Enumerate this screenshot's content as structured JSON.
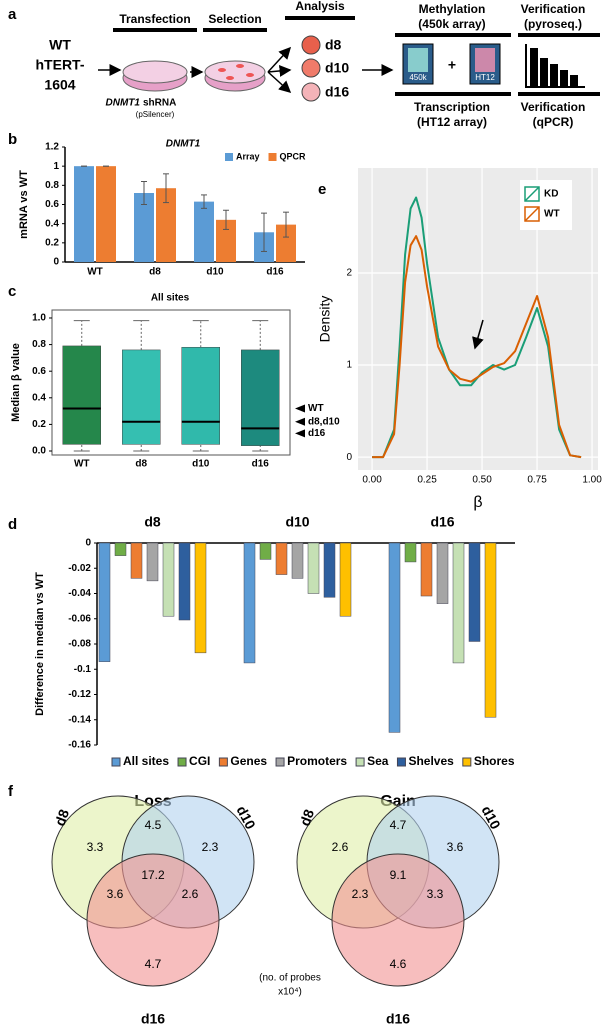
{
  "panel_labels": [
    "a",
    "b",
    "c",
    "d",
    "e",
    "f"
  ],
  "schematic": {
    "cell_line": [
      "WT",
      "hTERT-",
      "1604"
    ],
    "steps": [
      "Transfection",
      "Selection",
      "Analysis"
    ],
    "timepoints": [
      "d8",
      "d10",
      "d16"
    ],
    "construct": [
      "DNMT1",
      "shRNA",
      "(pSilencer)"
    ],
    "methylation": [
      "Methylation",
      "(450k array)"
    ],
    "array_tags": [
      "450k",
      "HT12"
    ],
    "transcription": [
      "Transcription",
      "(HT12 array)"
    ],
    "verification_top": [
      "Verification",
      "(pyroseq.)"
    ],
    "verification_bottom": [
      "Verification",
      "(qPCR)"
    ]
  },
  "chart_data": [
    {
      "type": "bar",
      "title": "DNMT1",
      "ylabel": "mRNA vs WT",
      "categories": [
        "WT",
        "d8",
        "d10",
        "d16"
      ],
      "series": [
        {
          "name": "Array",
          "color": "#5b9bd5",
          "values": [
            1,
            0.72,
            0.63,
            0.31
          ],
          "errors": [
            0,
            0.12,
            0.07,
            0.2
          ]
        },
        {
          "name": "QPCR",
          "color": "#ed7d31",
          "values": [
            1,
            0.77,
            0.44,
            0.39
          ],
          "errors": [
            0,
            0.15,
            0.1,
            0.13
          ]
        }
      ],
      "ylim": [
        0,
        1.2
      ],
      "yticks": [
        0,
        0.2,
        0.4,
        0.6,
        0.8,
        1,
        1.2
      ],
      "legend": "top-right"
    },
    {
      "type": "box",
      "title": "All sites",
      "ylabel": "Median β value",
      "categories": [
        "WT",
        "d8",
        "d10",
        "d16"
      ],
      "colors": [
        "#25874b",
        "#35bfb1",
        "#30b9ab",
        "#1d8a7e"
      ],
      "whisker_low": [
        0.0,
        0.0,
        0.0,
        0.0
      ],
      "q1": [
        0.05,
        0.05,
        0.05,
        0.04
      ],
      "median": [
        0.32,
        0.22,
        0.22,
        0.17
      ],
      "q3": [
        0.79,
        0.76,
        0.78,
        0.76
      ],
      "whisker_high": [
        0.98,
        0.98,
        0.98,
        0.98
      ],
      "annotations": [
        "WT",
        "d8,d10",
        "d16"
      ],
      "ylim": [
        -0.03,
        1.06
      ],
      "yticks": [
        {
          "value": 0,
          "label": "0.0"
        },
        {
          "value": 0.2,
          "label": "0.2"
        },
        {
          "value": 0.4,
          "label": "0.4"
        },
        {
          "value": 0.6,
          "label": "0.6"
        },
        {
          "value": 0.8,
          "label": "0.8"
        },
        {
          "value": 1,
          "label": "1.0"
        }
      ]
    },
    {
      "type": "bar",
      "ylabel": "Difference in median vs WT",
      "categories": [
        "d8",
        "d10",
        "d16"
      ],
      "series": [
        {
          "name": "All sites",
          "color": "#5b9bd5",
          "values": [
            -0.094,
            -0.095,
            -0.15
          ]
        },
        {
          "name": "CGI",
          "color": "#70ad47",
          "values": [
            -0.01,
            -0.013,
            -0.015
          ]
        },
        {
          "name": "Genes",
          "color": "#ed7d31",
          "values": [
            -0.028,
            -0.025,
            -0.042
          ]
        },
        {
          "name": "Promoters",
          "color": "#a5a5a5",
          "values": [
            -0.03,
            -0.028,
            -0.048
          ]
        },
        {
          "name": "Sea",
          "color": "#c5e0b4",
          "values": [
            -0.058,
            -0.04,
            -0.095
          ]
        },
        {
          "name": "Shelves",
          "color": "#2e5f9e",
          "values": [
            -0.061,
            -0.043,
            -0.078
          ]
        },
        {
          "name": "Shores",
          "color": "#ffc000",
          "values": [
            -0.087,
            -0.058,
            -0.138
          ]
        }
      ],
      "ylim": [
        -0.16,
        0
      ],
      "yticks": [
        0,
        -0.02,
        -0.04,
        -0.06,
        -0.08,
        -0.1,
        -0.12,
        -0.14,
        -0.16
      ],
      "legend": "bottom"
    },
    {
      "type": "line",
      "xlabel": "β",
      "ylabel": "Density",
      "x": [
        0,
        0.05,
        0.1,
        0.125,
        0.15,
        0.175,
        0.2,
        0.225,
        0.25,
        0.3,
        0.35,
        0.4,
        0.45,
        0.5,
        0.55,
        0.6,
        0.65,
        0.7,
        0.75,
        0.8,
        0.85,
        0.9,
        0.95
      ],
      "series": [
        {
          "name": "KD",
          "color": "#1a9e77",
          "values": [
            0,
            0,
            0.3,
            1.2,
            2.2,
            2.7,
            2.82,
            2.6,
            2.1,
            1.3,
            0.95,
            0.78,
            0.78,
            0.92,
            1.0,
            0.95,
            1.0,
            1.3,
            1.62,
            1.2,
            0.3,
            0.02,
            0
          ]
        },
        {
          "name": "WT",
          "color": "#d95f02",
          "values": [
            0,
            0,
            0.25,
            1.0,
            1.9,
            2.3,
            2.4,
            2.25,
            1.85,
            1.2,
            0.95,
            0.85,
            0.82,
            0.9,
            0.98,
            1.02,
            1.15,
            1.45,
            1.75,
            1.3,
            0.35,
            0.02,
            0
          ]
        }
      ],
      "xlim": [
        -0.064,
        1.027
      ],
      "ylim": [
        -0.14,
        3.14
      ],
      "xticks": [
        {
          "value": 0,
          "label": "0.00"
        },
        {
          "value": 0.25,
          "label": "0.25"
        },
        {
          "value": 0.5,
          "label": "0.50"
        },
        {
          "value": 0.75,
          "label": "0.75"
        },
        {
          "value": 1,
          "label": "1.00"
        }
      ],
      "yticks": [
        0,
        1,
        2
      ],
      "grid": true,
      "legend": "top-right"
    }
  ],
  "venn": {
    "note": [
      "(no. of probes",
      "x10⁴)"
    ],
    "diagrams": [
      {
        "title": "Loss",
        "sets": [
          "d8",
          "d10",
          "d16"
        ],
        "values": [
          3.3,
          2.3,
          4.7,
          4.5,
          3.6,
          2.6,
          17.2
        ]
      },
      {
        "title": "Gain",
        "sets": [
          "d8",
          "d10",
          "d16"
        ],
        "values": [
          2.6,
          3.6,
          4.6,
          4.7,
          2.3,
          3.3,
          9.1
        ]
      }
    ]
  }
}
